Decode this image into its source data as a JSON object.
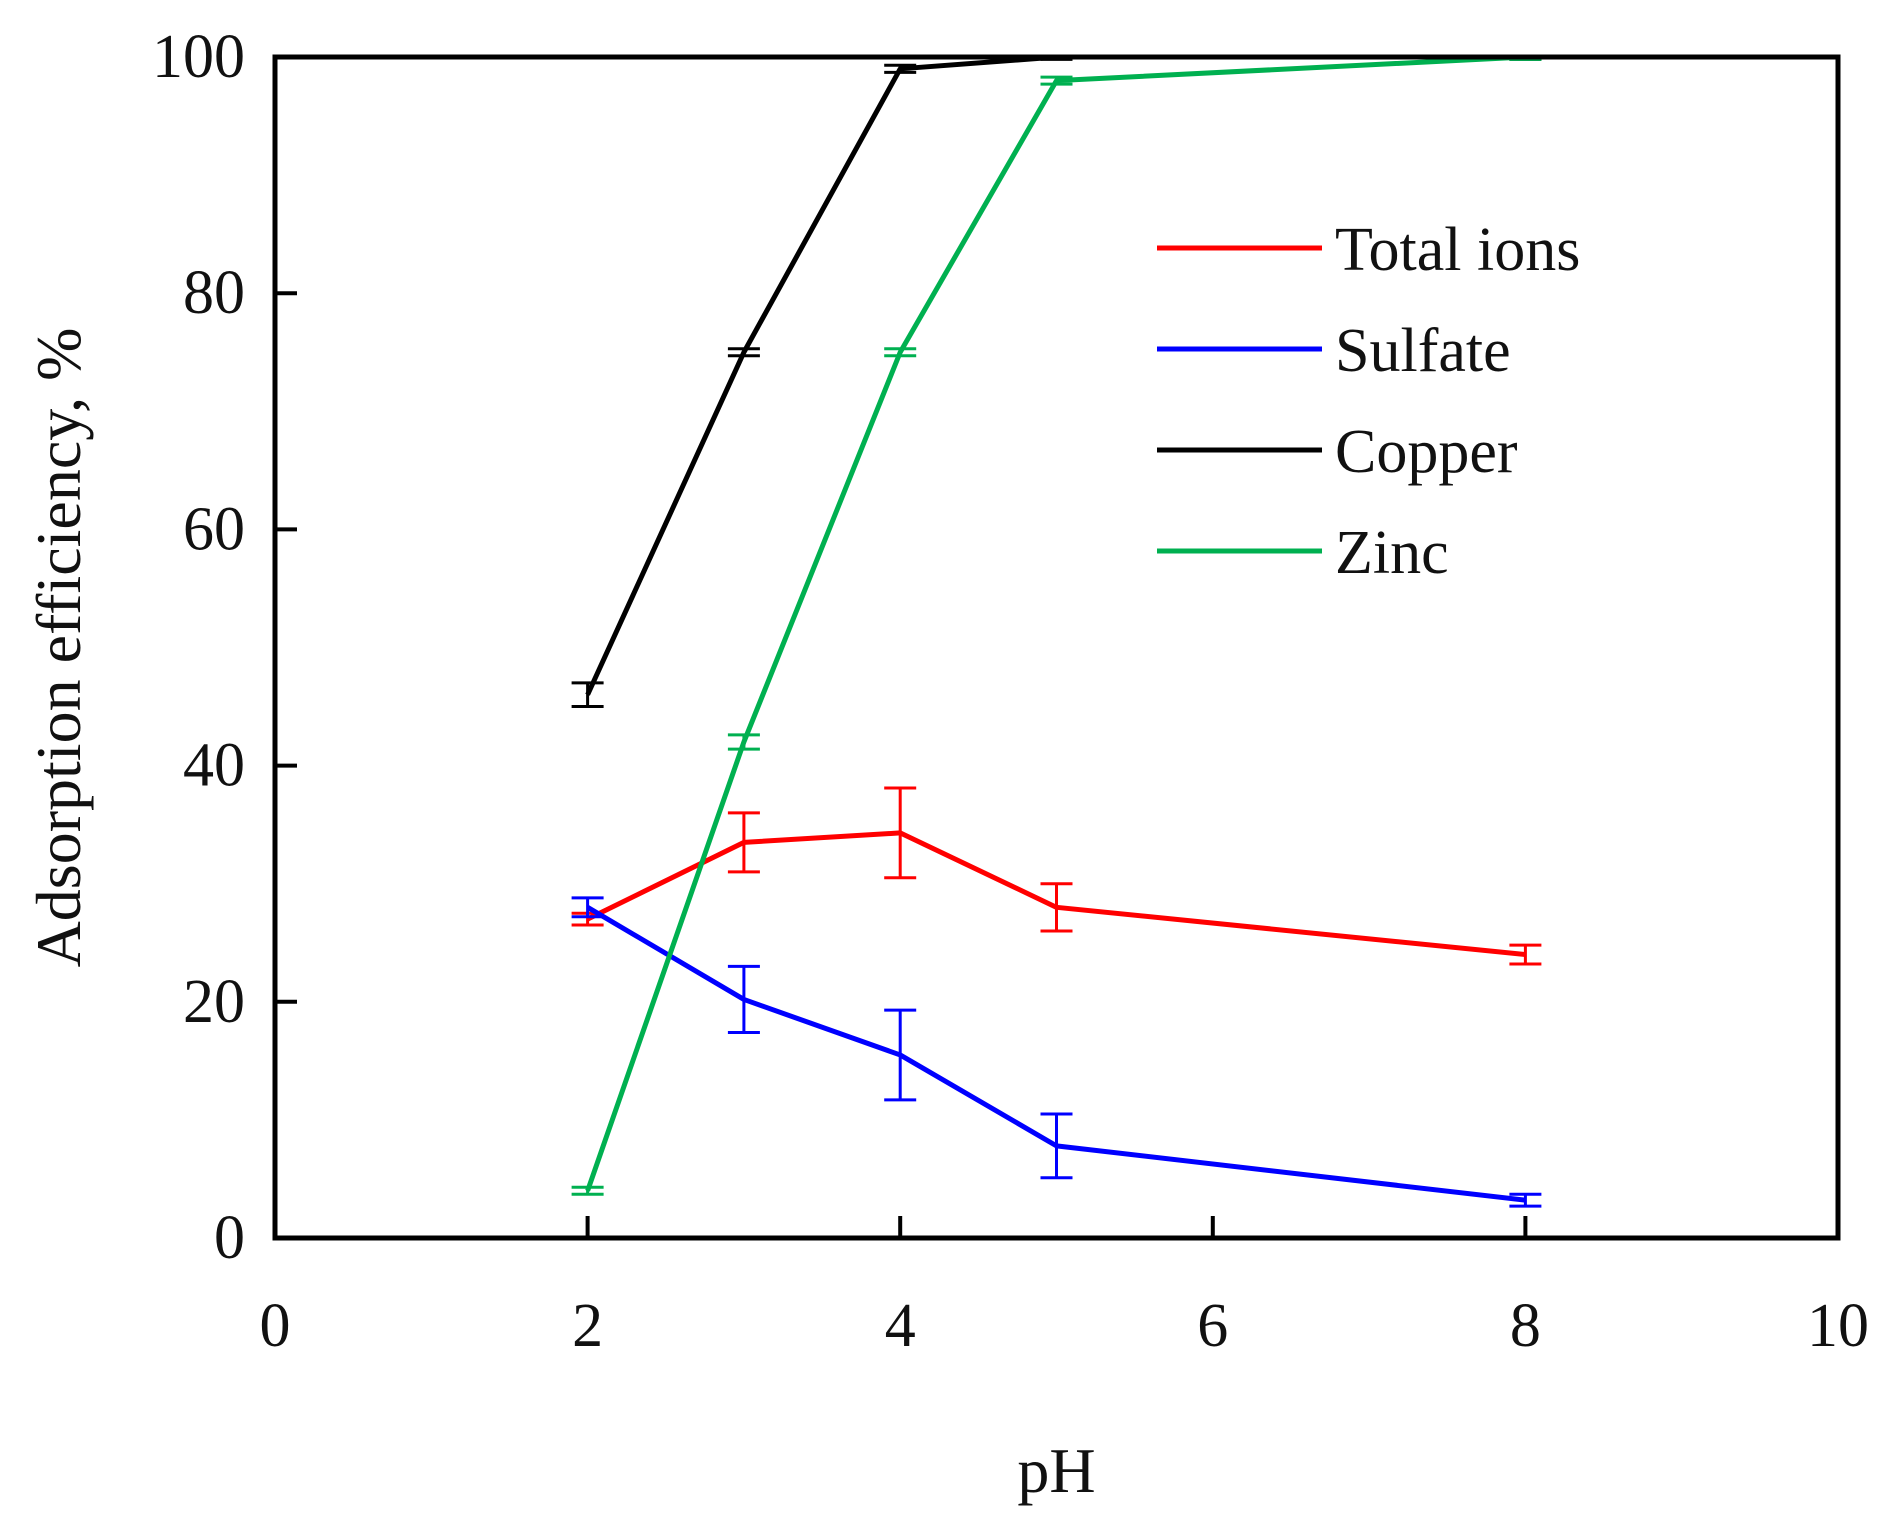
{
  "chart_data": {
    "type": "line",
    "title": "",
    "xlabel": "pH",
    "ylabel": "Adsorption efficiency, %",
    "xlim": [
      0,
      10
    ],
    "ylim": [
      0,
      100
    ],
    "xticks": [
      0,
      2,
      4,
      6,
      8,
      10
    ],
    "yticks": [
      0,
      20,
      40,
      60,
      80,
      100
    ],
    "grid": false,
    "legend_position": "top-right",
    "series": [
      {
        "name": "Total ions",
        "color": "#ff0000",
        "x": [
          2,
          3,
          4,
          5,
          8
        ],
        "y": [
          27,
          33.5,
          34.3,
          28,
          24
        ],
        "err": [
          0.5,
          2.5,
          3.8,
          2.0,
          0.8
        ]
      },
      {
        "name": "Sulfate",
        "color": "#0000ff",
        "x": [
          2,
          3,
          4,
          5,
          8
        ],
        "y": [
          28,
          20.2,
          15.5,
          7.8,
          3.2
        ],
        "err": [
          0.8,
          2.8,
          3.8,
          2.7,
          0.5
        ]
      },
      {
        "name": "Copper",
        "color": "#000000",
        "x": [
          2,
          3,
          4,
          5,
          8
        ],
        "y": [
          46,
          75,
          99,
          100,
          100
        ],
        "err": [
          1.0,
          0.3,
          0.3,
          0.2,
          0.2
        ]
      },
      {
        "name": "Zinc",
        "color": "#00b050",
        "x": [
          2,
          3,
          4,
          5,
          8
        ],
        "y": [
          4,
          42,
          75,
          98,
          100
        ],
        "err": [
          0.3,
          0.6,
          0.3,
          0.3,
          0.2
        ]
      }
    ]
  }
}
